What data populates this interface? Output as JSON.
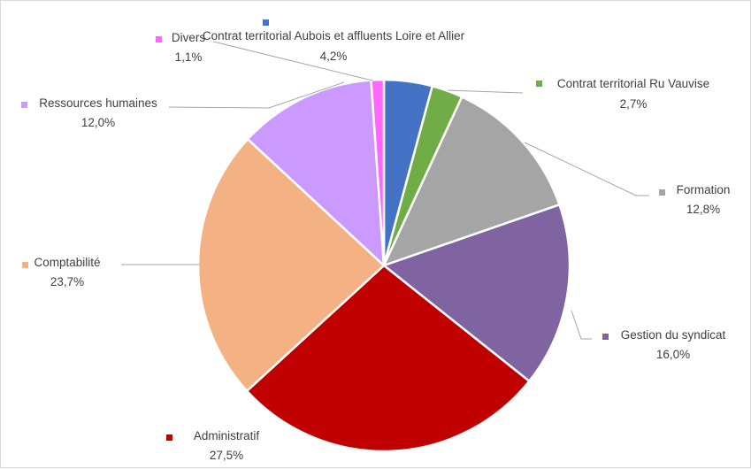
{
  "chart_data": {
    "type": "pie",
    "title": "",
    "slices": [
      {
        "name": "Contrat territorial Aubois et affluents Loire et Allier",
        "value": 4.2,
        "label": "4,2%",
        "color": "#4472c4"
      },
      {
        "name": "Contrat territorial Ru Vauvise",
        "value": 2.7,
        "label": "2,7%",
        "color": "#70ad47"
      },
      {
        "name": "Formation",
        "value": 12.8,
        "label": "12,8%",
        "color": "#a5a5a5"
      },
      {
        "name": "Gestion du syndicat",
        "value": 16.0,
        "label": "16,0%",
        "color": "#8064a2"
      },
      {
        "name": "Administratif",
        "value": 27.5,
        "label": "27,5%",
        "color": "#c00000"
      },
      {
        "name": "Comptabilité",
        "value": 23.7,
        "label": "23,7%",
        "color": "#f4b183"
      },
      {
        "name": "Ressources humaines",
        "value": 12.0,
        "label": "12,0%",
        "color": "#cc99ff"
      },
      {
        "name": "Divers",
        "value": 1.1,
        "label": "1,1%",
        "color": "#ff66ff"
      }
    ],
    "start_angle": "top (12 o'clock)",
    "direction": "clockwise",
    "legend": "none",
    "data_labels": "category name and percentage with leader lines"
  }
}
